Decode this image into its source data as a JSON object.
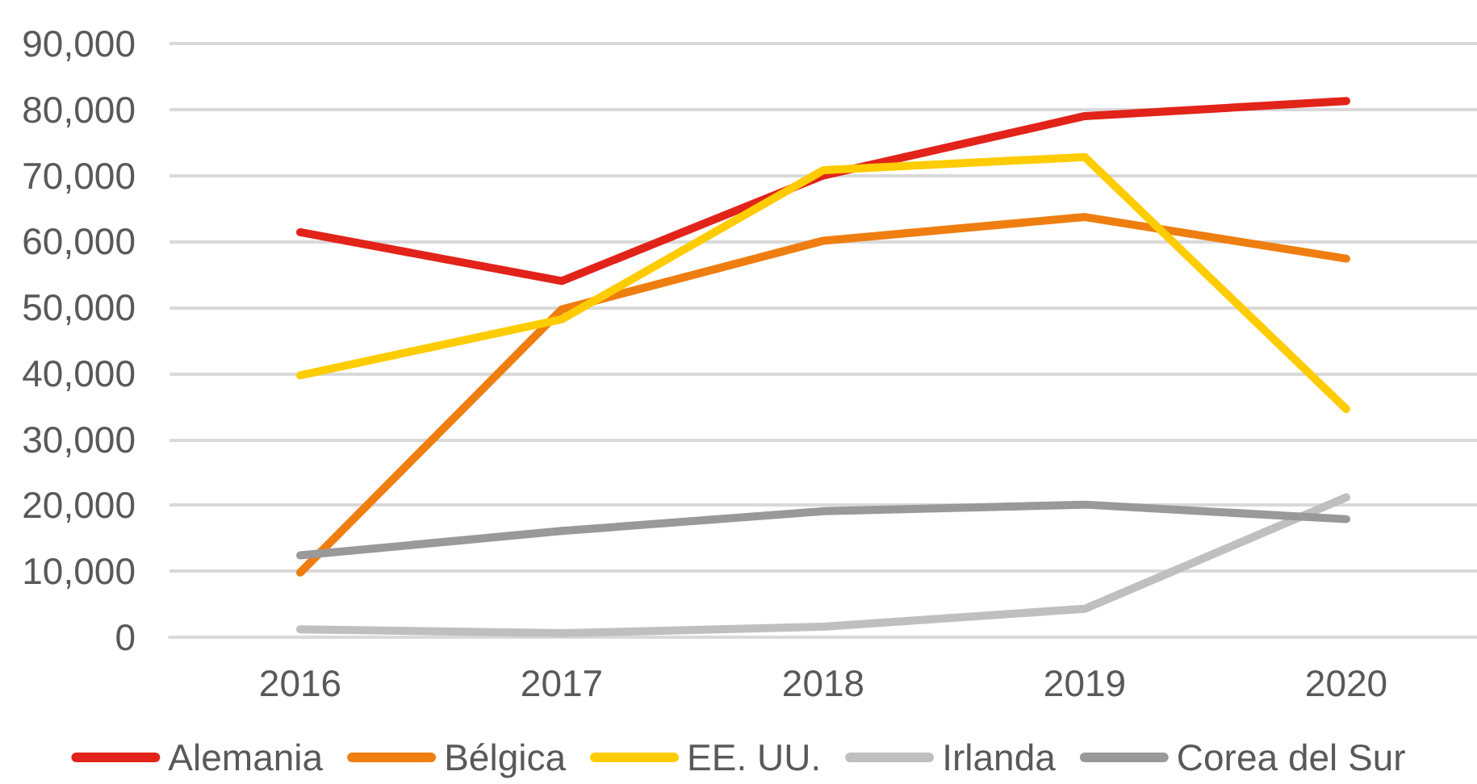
{
  "chart_data": {
    "type": "line",
    "categories": [
      "2016",
      "2017",
      "2018",
      "2019",
      "2020"
    ],
    "series": [
      {
        "name": "Alemania",
        "color": "#e2231a",
        "values": [
          61400,
          54000,
          70000,
          79000,
          81300
        ]
      },
      {
        "name": "Bélgica",
        "color": "#ef7e10",
        "values": [
          9800,
          49700,
          60100,
          63700,
          57400
        ]
      },
      {
        "name": "EE. UU.",
        "color": "#ffcc00",
        "values": [
          39700,
          48200,
          70800,
          72800,
          34600
        ]
      },
      {
        "name": "Irlanda",
        "color": "#bfbfbf",
        "values": [
          1200,
          600,
          1600,
          4300,
          21200
        ]
      },
      {
        "name": "Corea del Sur",
        "color": "#999999",
        "values": [
          12400,
          16100,
          19100,
          20100,
          17900
        ]
      }
    ],
    "ylim": [
      0,
      90000
    ],
    "yticks": [
      0,
      {
        "value": 10000,
        "label": "10,000"
      },
      {
        "value": 20000,
        "label": "20,000"
      },
      {
        "value": 30000,
        "label": "30,000"
      },
      {
        "value": 40000,
        "label": "40,000"
      },
      {
        "value": 50000,
        "label": "50,000"
      },
      {
        "value": 60000,
        "label": "60,000"
      },
      {
        "value": 70000,
        "label": "70,000"
      },
      {
        "value": 80000,
        "label": "80,000"
      },
      {
        "value": 90000,
        "label": "90,000"
      }
    ],
    "grid": "y",
    "legend": "bottom",
    "marker": "none",
    "line_style": "solid"
  }
}
